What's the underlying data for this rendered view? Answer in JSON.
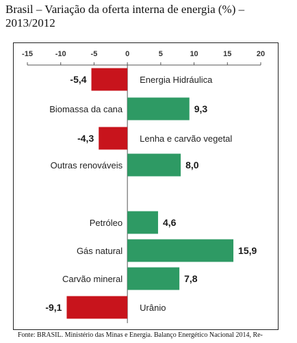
{
  "title": "Brasil – Variação da oferta interna de energia (%) – 2013/2012",
  "footer": "Fonte: BRASIL. Ministério das Minas e Energia. Balanço Energético Nacional 2014, Re-",
  "colors": {
    "negative": "#c8141c",
    "positive": "#2e9a64",
    "axis": "#555555"
  },
  "chart_data": {
    "type": "bar",
    "orientation": "horizontal",
    "title": "Brasil – Variação da oferta interna de energia (%) – 2013/2012",
    "xlabel": "",
    "ylabel": "",
    "xlim": [
      -15,
      20
    ],
    "xticks": [
      -15,
      -10,
      -5,
      0,
      5,
      10,
      15,
      20
    ],
    "xtick_labels": [
      "-15",
      "-10",
      "-5",
      "0",
      "5",
      "10",
      "15",
      "20"
    ],
    "axis_position": "top",
    "grid": false,
    "categories": [
      "Energia Hidráulica",
      "Biomassa da cana",
      "Lenha e carvão vegetal",
      "Outras renováveis",
      "Petróleo",
      "Gás natural",
      "Carvão mineral",
      "Urânio"
    ],
    "values": [
      -5.4,
      9.3,
      -4.3,
      8.0,
      4.6,
      15.9,
      7.8,
      -9.1
    ],
    "value_labels": [
      "-5,4",
      "9,3",
      "-4,3",
      "8,0",
      "4,6",
      "15,9",
      "7,8",
      "-9,1"
    ]
  }
}
